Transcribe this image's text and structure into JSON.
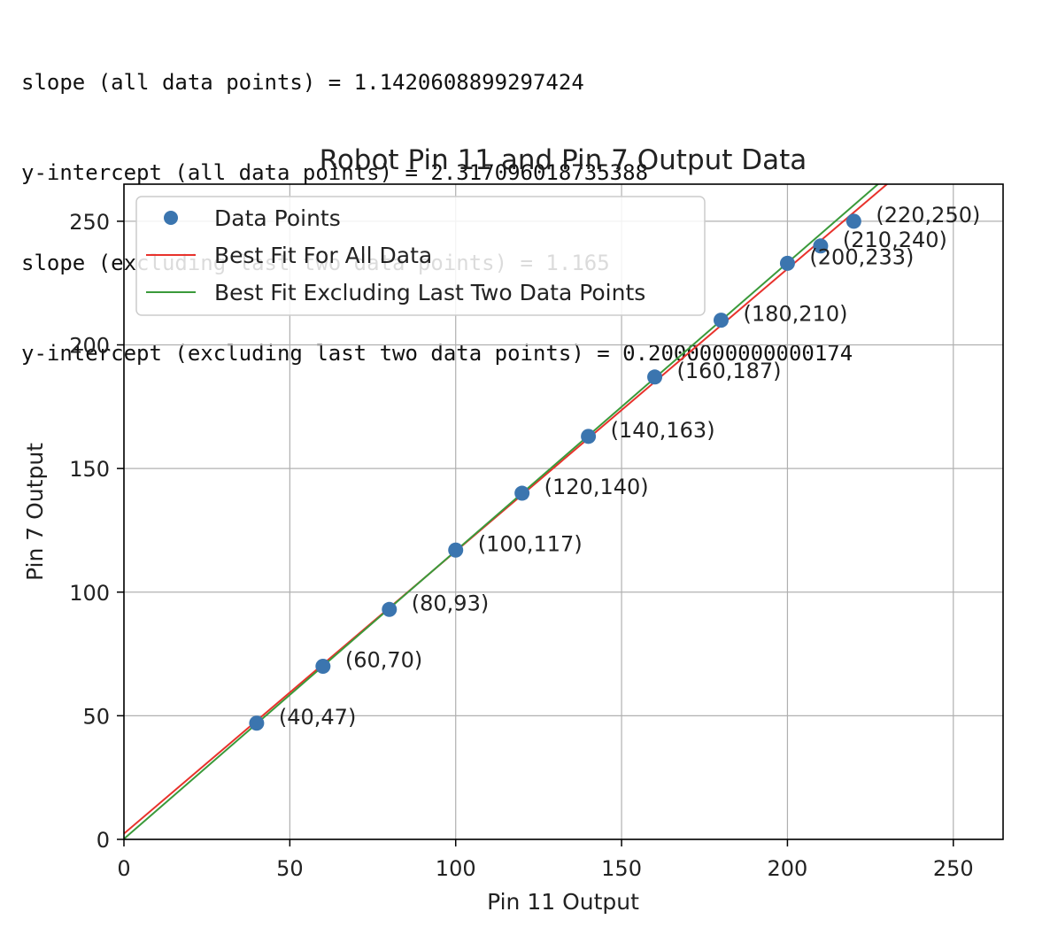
{
  "console": {
    "lines": [
      "slope (all data points) = 1.1420608899297424",
      "y-intercept (all data points) = 2.317096018735388",
      "slope (excluding last two data points) = 1.165",
      "y-intercept (excluding last two data points) = 0.2000000000000174"
    ]
  },
  "chart_data": {
    "type": "scatter",
    "title": "Robot Pin 11 and Pin 7 Output Data",
    "xlabel": "Pin 11 Output",
    "ylabel": "Pin 7 Output",
    "xlim": [
      0,
      265
    ],
    "ylim": [
      0,
      265
    ],
    "xticks": [
      0,
      50,
      100,
      150,
      200,
      250
    ],
    "yticks": [
      0,
      50,
      100,
      150,
      200,
      250
    ],
    "grid": true,
    "legend_position": "upper-left",
    "series": [
      {
        "name": "Data Points",
        "kind": "scatter",
        "color": "#3b75af",
        "x": [
          40,
          60,
          80,
          100,
          120,
          140,
          160,
          180,
          200,
          210,
          220
        ],
        "y": [
          47,
          70,
          93,
          117,
          140,
          163,
          187,
          210,
          233,
          240,
          250
        ],
        "labels": [
          "(40,47)",
          "(60,70)",
          "(80,93)",
          "(100,117)",
          "(120,140)",
          "(140,163)",
          "(160,187)",
          "(180,210)",
          "(200,233)",
          "(210,240)",
          "(220,250)"
        ]
      },
      {
        "name": "Best Fit For All Data",
        "kind": "line",
        "color": "#e8322c",
        "slope": 1.1420608899297424,
        "intercept": 2.317096018735388
      },
      {
        "name": "Best Fit Excluding Last Two Data Points",
        "kind": "line",
        "color": "#3a9a3a",
        "slope": 1.165,
        "intercept": 0.2000000000000174
      }
    ]
  }
}
